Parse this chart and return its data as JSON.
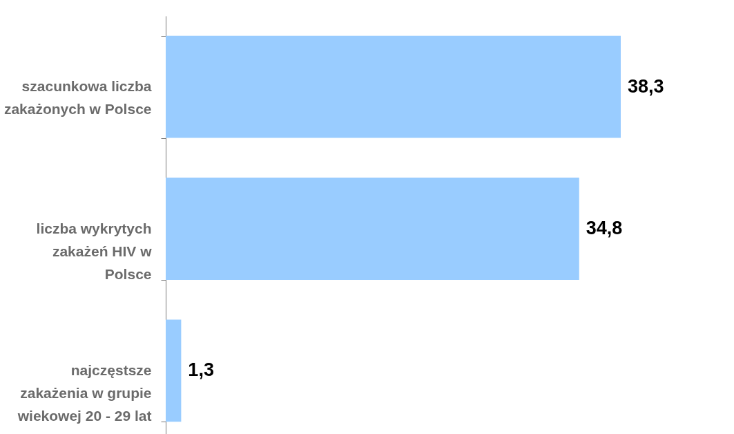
{
  "chart_data": {
    "type": "bar",
    "orientation": "horizontal",
    "categories": [
      "szacunkowa liczba\nzakażonych w Polsce",
      "liczba wykrytych\nzakażeń HIV w\nPolsce",
      "najczęstsze\nzakażenia w grupie\nwiekowej 20 - 29 lat"
    ],
    "values": [
      38.3,
      34.8,
      1.3
    ],
    "value_labels": [
      "38,3",
      "34,8",
      "1,3"
    ],
    "color": "#99ccff"
  }
}
